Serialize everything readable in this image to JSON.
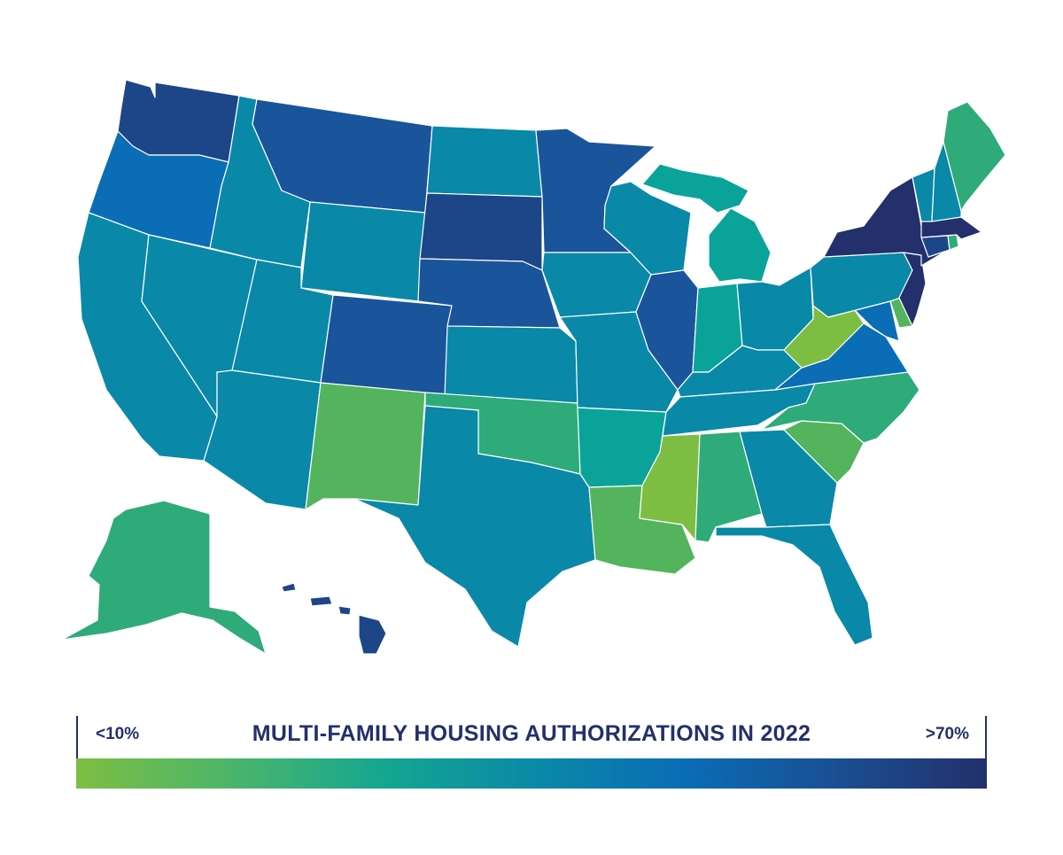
{
  "legend": {
    "title": "MULTI-FAMILY HOUSING AUTHORIZATIONS IN 2022",
    "low_label": "<10%",
    "high_label": ">70%",
    "colors": [
      "#7dbe42",
      "#4db56a",
      "#15a790",
      "#0a8aa6",
      "#0a6db5",
      "#1a4f93",
      "#23306b"
    ]
  },
  "palette": {
    "c1": "#7dbe42",
    "c2": "#54b45e",
    "c3": "#2eab78",
    "c4": "#0aa39a",
    "c5": "#0a88a8",
    "c6": "#0a6db5",
    "c7": "#1a549a",
    "c8": "#1d4688",
    "c9": "#23306b"
  },
  "states": {
    "WA": "c8",
    "OR": "c6",
    "CA": "c5",
    "NV": "c5",
    "ID": "c5",
    "MT": "c7",
    "WY": "c5",
    "UT": "c5",
    "AZ": "c5",
    "CO": "c7",
    "NM": "c2",
    "ND": "c5",
    "SD": "c8",
    "NE": "c7",
    "KS": "c5",
    "OK": "c3",
    "TX": "c5",
    "MN": "c7",
    "IA": "c5",
    "MO": "c5",
    "AR": "c4",
    "LA": "c2",
    "WI": "c5",
    "IL": "c7",
    "MI": "c4",
    "IN": "c4",
    "OH": "c5",
    "KY": "c5",
    "TN": "c5",
    "MS": "c1",
    "AL": "c3",
    "GA": "c5",
    "FL": "c5",
    "SC": "c2",
    "NC": "c3",
    "VA": "c6",
    "WV": "c1",
    "MD": "c6",
    "DE": "c2",
    "PA": "c5",
    "NJ": "c9",
    "NY": "c9",
    "CT": "c8",
    "RI": "c3",
    "MA": "c9",
    "VT": "c5",
    "NH": "c5",
    "ME": "c3",
    "AK": "c3",
    "HI": "c8"
  }
}
